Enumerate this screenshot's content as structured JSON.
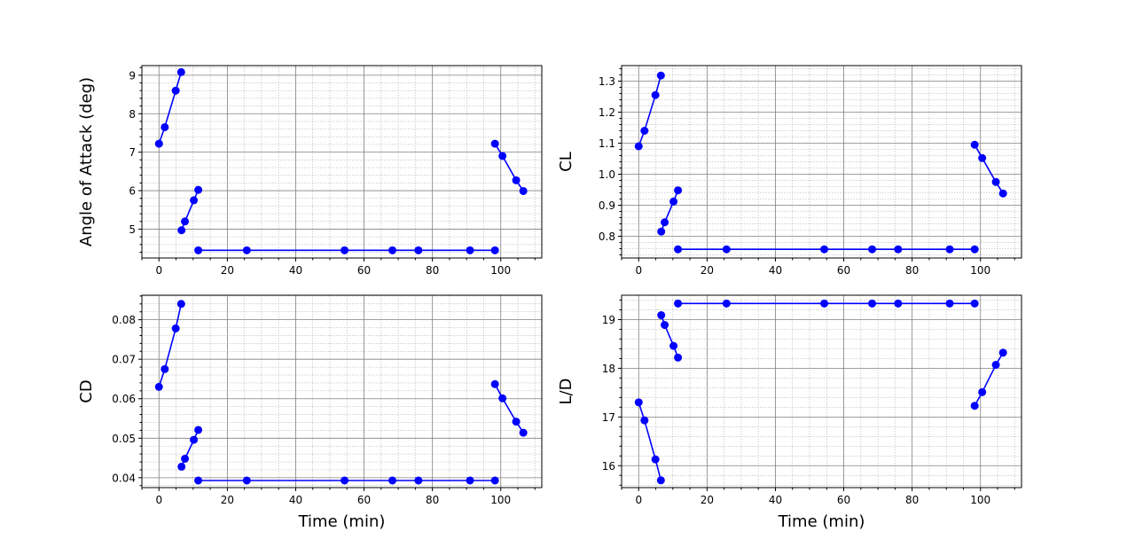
{
  "colors": {
    "series": "#0000ff",
    "grid_major": "#808080",
    "grid_minor": "#a8a8a8"
  },
  "chart_data": [
    {
      "type": "line",
      "panel": "top-left",
      "xlabel": "",
      "ylabel": "Angle of Attack (deg)",
      "xlim": [
        -5,
        112
      ],
      "ylim": [
        4.25,
        9.25
      ],
      "xticks": [
        0,
        20,
        40,
        60,
        80,
        100
      ],
      "xtick_labels": [
        "0",
        "20",
        "40",
        "60",
        "80",
        "100"
      ],
      "yticks": [
        5,
        6,
        7,
        8,
        9
      ],
      "ytick_labels": [
        "5",
        "6",
        "7",
        "8",
        "9"
      ],
      "y_minor_step": 0.2,
      "grid": true,
      "series": [
        {
          "x": [
            0,
            1.7,
            4.9,
            6.5
          ],
          "y": [
            7.22,
            7.65,
            8.6,
            9.08
          ]
        },
        {
          "x": [
            6.6,
            7.6,
            10.2,
            11.5
          ],
          "y": [
            4.97,
            5.2,
            5.75,
            6.02
          ]
        },
        {
          "x": [
            11.5,
            25.7,
            54.3,
            68.3,
            75.9,
            91.0,
            98.3
          ],
          "y": [
            4.45,
            4.45,
            4.45,
            4.45,
            4.45,
            4.45,
            4.45
          ]
        },
        {
          "x": [
            98.3,
            100.5,
            104.5,
            106.6
          ],
          "y": [
            7.22,
            6.9,
            6.27,
            5.99
          ]
        }
      ]
    },
    {
      "type": "line",
      "panel": "top-right",
      "xlabel": "",
      "ylabel": "CL",
      "xlim": [
        -5,
        112
      ],
      "ylim": [
        0.73,
        1.35
      ],
      "xticks": [
        0,
        20,
        40,
        60,
        80,
        100
      ],
      "xtick_labels": [
        "0",
        "20",
        "40",
        "60",
        "80",
        "100"
      ],
      "yticks": [
        0.8,
        0.9,
        1.0,
        1.1,
        1.2,
        1.3
      ],
      "ytick_labels": [
        "0.8",
        "0.9",
        "1.0",
        "1.1",
        "1.2",
        "1.3"
      ],
      "y_minor_step": 0.02,
      "grid": true,
      "series": [
        {
          "x": [
            0,
            1.7,
            4.9,
            6.5
          ],
          "y": [
            1.09,
            1.14,
            1.255,
            1.318
          ]
        },
        {
          "x": [
            6.6,
            7.6,
            10.2,
            11.5
          ],
          "y": [
            0.815,
            0.845,
            0.912,
            0.948
          ]
        },
        {
          "x": [
            11.5,
            25.7,
            54.3,
            68.3,
            75.9,
            91.0,
            98.3
          ],
          "y": [
            0.758,
            0.758,
            0.758,
            0.758,
            0.758,
            0.758,
            0.758
          ]
        },
        {
          "x": [
            98.3,
            100.5,
            104.5,
            106.6
          ],
          "y": [
            1.095,
            1.052,
            0.975,
            0.938
          ]
        }
      ]
    },
    {
      "type": "line",
      "panel": "bottom-left",
      "xlabel": "Time (min)",
      "ylabel": "CD",
      "xlim": [
        -5,
        112
      ],
      "ylim": [
        0.0375,
        0.0862
      ],
      "xticks": [
        0,
        20,
        40,
        60,
        80,
        100
      ],
      "xtick_labels": [
        "0",
        "20",
        "40",
        "60",
        "80",
        "100"
      ],
      "yticks": [
        0.04,
        0.05,
        0.06,
        0.07,
        0.08
      ],
      "ytick_labels": [
        "0.04",
        "0.05",
        "0.06",
        "0.07",
        "0.08"
      ],
      "y_minor_step": 0.002,
      "grid": true,
      "series": [
        {
          "x": [
            0,
            1.7,
            4.9,
            6.5
          ],
          "y": [
            0.063,
            0.0675,
            0.0778,
            0.084
          ]
        },
        {
          "x": [
            6.6,
            7.6,
            10.2,
            11.5
          ],
          "y": [
            0.0428,
            0.0448,
            0.0496,
            0.0521
          ]
        },
        {
          "x": [
            11.5,
            25.7,
            54.3,
            68.3,
            75.9,
            91.0,
            98.3
          ],
          "y": [
            0.0393,
            0.0393,
            0.0393,
            0.0393,
            0.0393,
            0.0393,
            0.0393
          ]
        },
        {
          "x": [
            98.3,
            100.5,
            104.5,
            106.6
          ],
          "y": [
            0.0637,
            0.0601,
            0.0542,
            0.0514
          ]
        }
      ]
    },
    {
      "type": "line",
      "panel": "bottom-right",
      "xlabel": "Time (min)",
      "ylabel": "L/D",
      "xlim": [
        -5,
        112
      ],
      "ylim": [
        15.55,
        19.5
      ],
      "xticks": [
        0,
        20,
        40,
        60,
        80,
        100
      ],
      "xtick_labels": [
        "0",
        "20",
        "40",
        "60",
        "80",
        "100"
      ],
      "yticks": [
        16,
        17,
        18,
        19
      ],
      "ytick_labels": [
        "16",
        "17",
        "18",
        "19"
      ],
      "y_minor_step": 0.2,
      "grid": true,
      "series": [
        {
          "x": [
            0,
            1.7,
            4.9,
            6.5
          ],
          "y": [
            17.3,
            16.93,
            16.13,
            15.7
          ]
        },
        {
          "x": [
            6.6,
            7.6,
            10.2,
            11.5
          ],
          "y": [
            19.09,
            18.89,
            18.46,
            18.22
          ]
        },
        {
          "x": [
            11.5,
            25.7,
            54.3,
            68.3,
            75.9,
            91.0,
            98.3
          ],
          "y": [
            19.33,
            19.33,
            19.33,
            19.33,
            19.33,
            19.33,
            19.33
          ]
        },
        {
          "x": [
            98.3,
            100.5,
            104.5,
            106.6
          ],
          "y": [
            17.23,
            17.51,
            18.07,
            18.32
          ]
        }
      ]
    }
  ]
}
